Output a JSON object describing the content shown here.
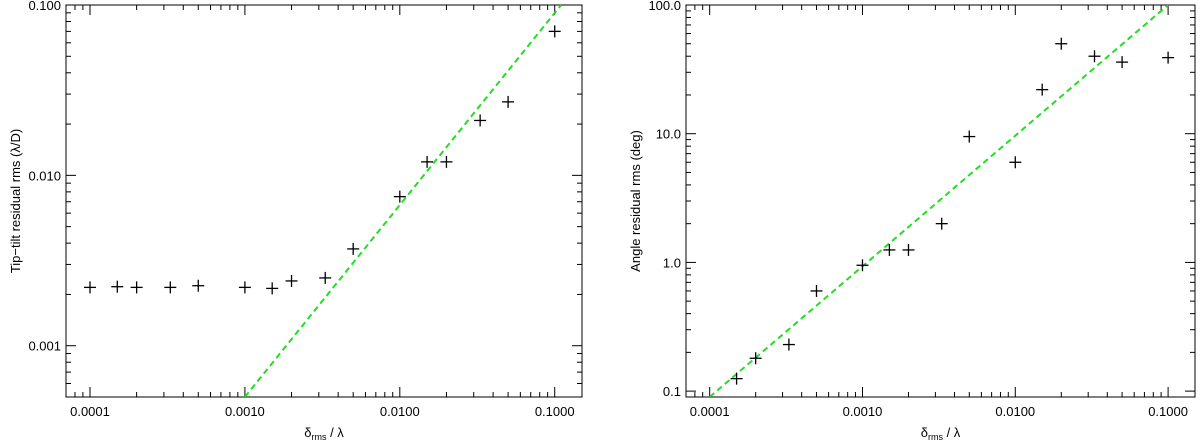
{
  "chart_data": [
    {
      "type": "scatter",
      "title": "",
      "xlabel": {
        "main": "δ",
        "sub": "rms",
        "rest": " / λ"
      },
      "ylabel": "Tip−tilt residual rms (λ/D)",
      "xscale": "log",
      "yscale": "log",
      "xlim": [
        7e-05,
        0.15
      ],
      "ylim": [
        0.0005,
        0.1
      ],
      "xticks": [
        0.0001,
        0.001,
        0.01,
        0.1
      ],
      "xtick_labels": [
        "0.0001",
        "0.0010",
        "0.0100",
        "0.1000"
      ],
      "yticks": [
        0.001,
        0.01,
        0.1
      ],
      "ytick_labels": [
        "0.001",
        "0.010",
        "0.100"
      ],
      "grid": false,
      "legend": "none",
      "marker": "plus",
      "marker_color": "#000000",
      "series": [
        {
          "x": [
            0.0001,
            0.00015,
            0.0002,
            0.00033,
            0.0005,
            0.001,
            0.0015,
            0.002,
            0.0033,
            0.005,
            0.01,
            0.015,
            0.02,
            0.033,
            0.05,
            0.1
          ],
          "y": [
            0.0022,
            0.00222,
            0.0022,
            0.0022,
            0.00225,
            0.0022,
            0.00217,
            0.0024,
            0.0025,
            0.0037,
            0.0075,
            0.012,
            0.012,
            0.021,
            0.027,
            0.07
          ]
        }
      ],
      "fit_line": {
        "x": [
          0.001,
          0.11
        ],
        "y": [
          0.0005,
          0.1
        ],
        "color": "#22dd22",
        "style": "dashed"
      }
    },
    {
      "type": "scatter",
      "title": "",
      "xlabel": {
        "main": "δ",
        "sub": "rms",
        "rest": " / λ"
      },
      "ylabel": "Angle residual rms (deg)",
      "xscale": "log",
      "yscale": "log",
      "xlim": [
        7e-05,
        0.15
      ],
      "ylim": [
        0.09,
        100
      ],
      "xticks": [
        0.0001,
        0.001,
        0.01,
        0.1
      ],
      "xtick_labels": [
        "0.0001",
        "0.0010",
        "0.0100",
        "0.1000"
      ],
      "yticks": [
        0.1,
        1,
        10,
        100
      ],
      "ytick_labels": [
        "0.1",
        "1.0",
        "10.0",
        "100.0"
      ],
      "grid": false,
      "legend": "none",
      "marker": "plus",
      "marker_color": "#000000",
      "series": [
        {
          "x": [
            0.00015,
            0.0002,
            0.00033,
            0.0005,
            0.001,
            0.0015,
            0.002,
            0.0033,
            0.005,
            0.01,
            0.015,
            0.02,
            0.033,
            0.05,
            0.1
          ],
          "y": [
            0.125,
            0.18,
            0.23,
            0.6,
            0.95,
            1.25,
            1.25,
            2.0,
            9.5,
            6.0,
            22.0,
            50.0,
            40.0,
            36.0,
            39.0
          ]
        }
      ],
      "fit_line": {
        "x": [
          0.0001,
          0.1
        ],
        "y": [
          0.09,
          100
        ],
        "color": "#22dd22",
        "style": "dashed"
      }
    }
  ]
}
